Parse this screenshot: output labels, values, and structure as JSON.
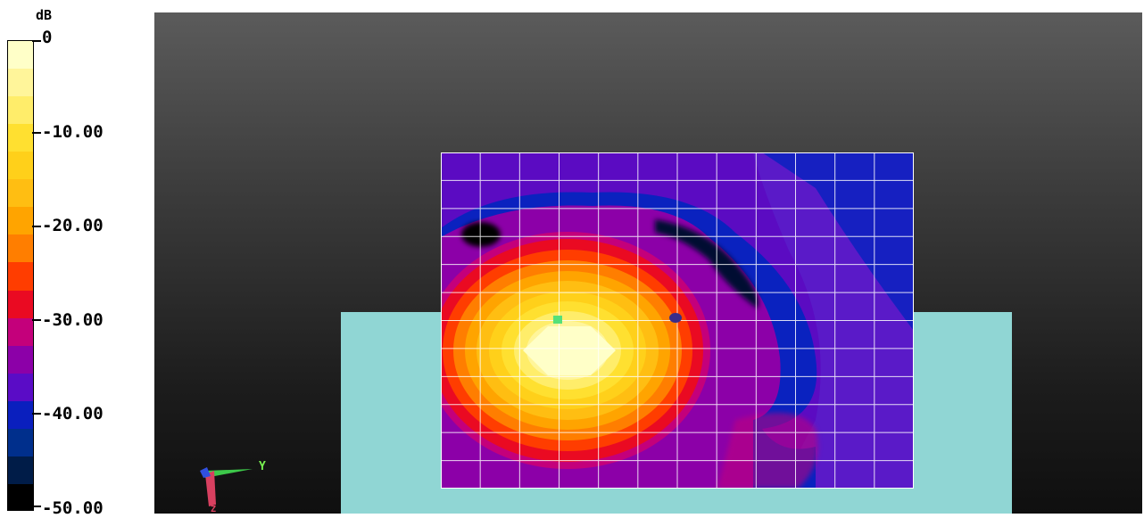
{
  "legend": {
    "unit": "dB",
    "ticks": [
      "0",
      "-10.00",
      "-20.00",
      "-30.00",
      "-40.00",
      "-50.00"
    ],
    "colors": [
      "#ffffc8",
      "#fff59a",
      "#ffed6a",
      "#ffe030",
      "#ffd01a",
      "#ffbe12",
      "#ffa400",
      "#ff7e00",
      "#ff3d00",
      "#ea0a22",
      "#c4007b",
      "#8c00a8",
      "#5a0cc6",
      "#0a1fbe",
      "#002f8c",
      "#001c48",
      "#000000"
    ]
  },
  "viewport": {
    "axes": {
      "y_label": "Y",
      "z_label": "Z"
    },
    "background_top": "#5b5b5b",
    "background_bottom": "#0f0f0f",
    "base_color": "#90d6d4",
    "grid": {
      "columns": 12,
      "rows": 12,
      "line_color": "#ffffff"
    },
    "markers": [
      {
        "name": "source",
        "color": "#55e07a"
      },
      {
        "name": "receiver",
        "color": "#3a2d8a"
      }
    ]
  }
}
